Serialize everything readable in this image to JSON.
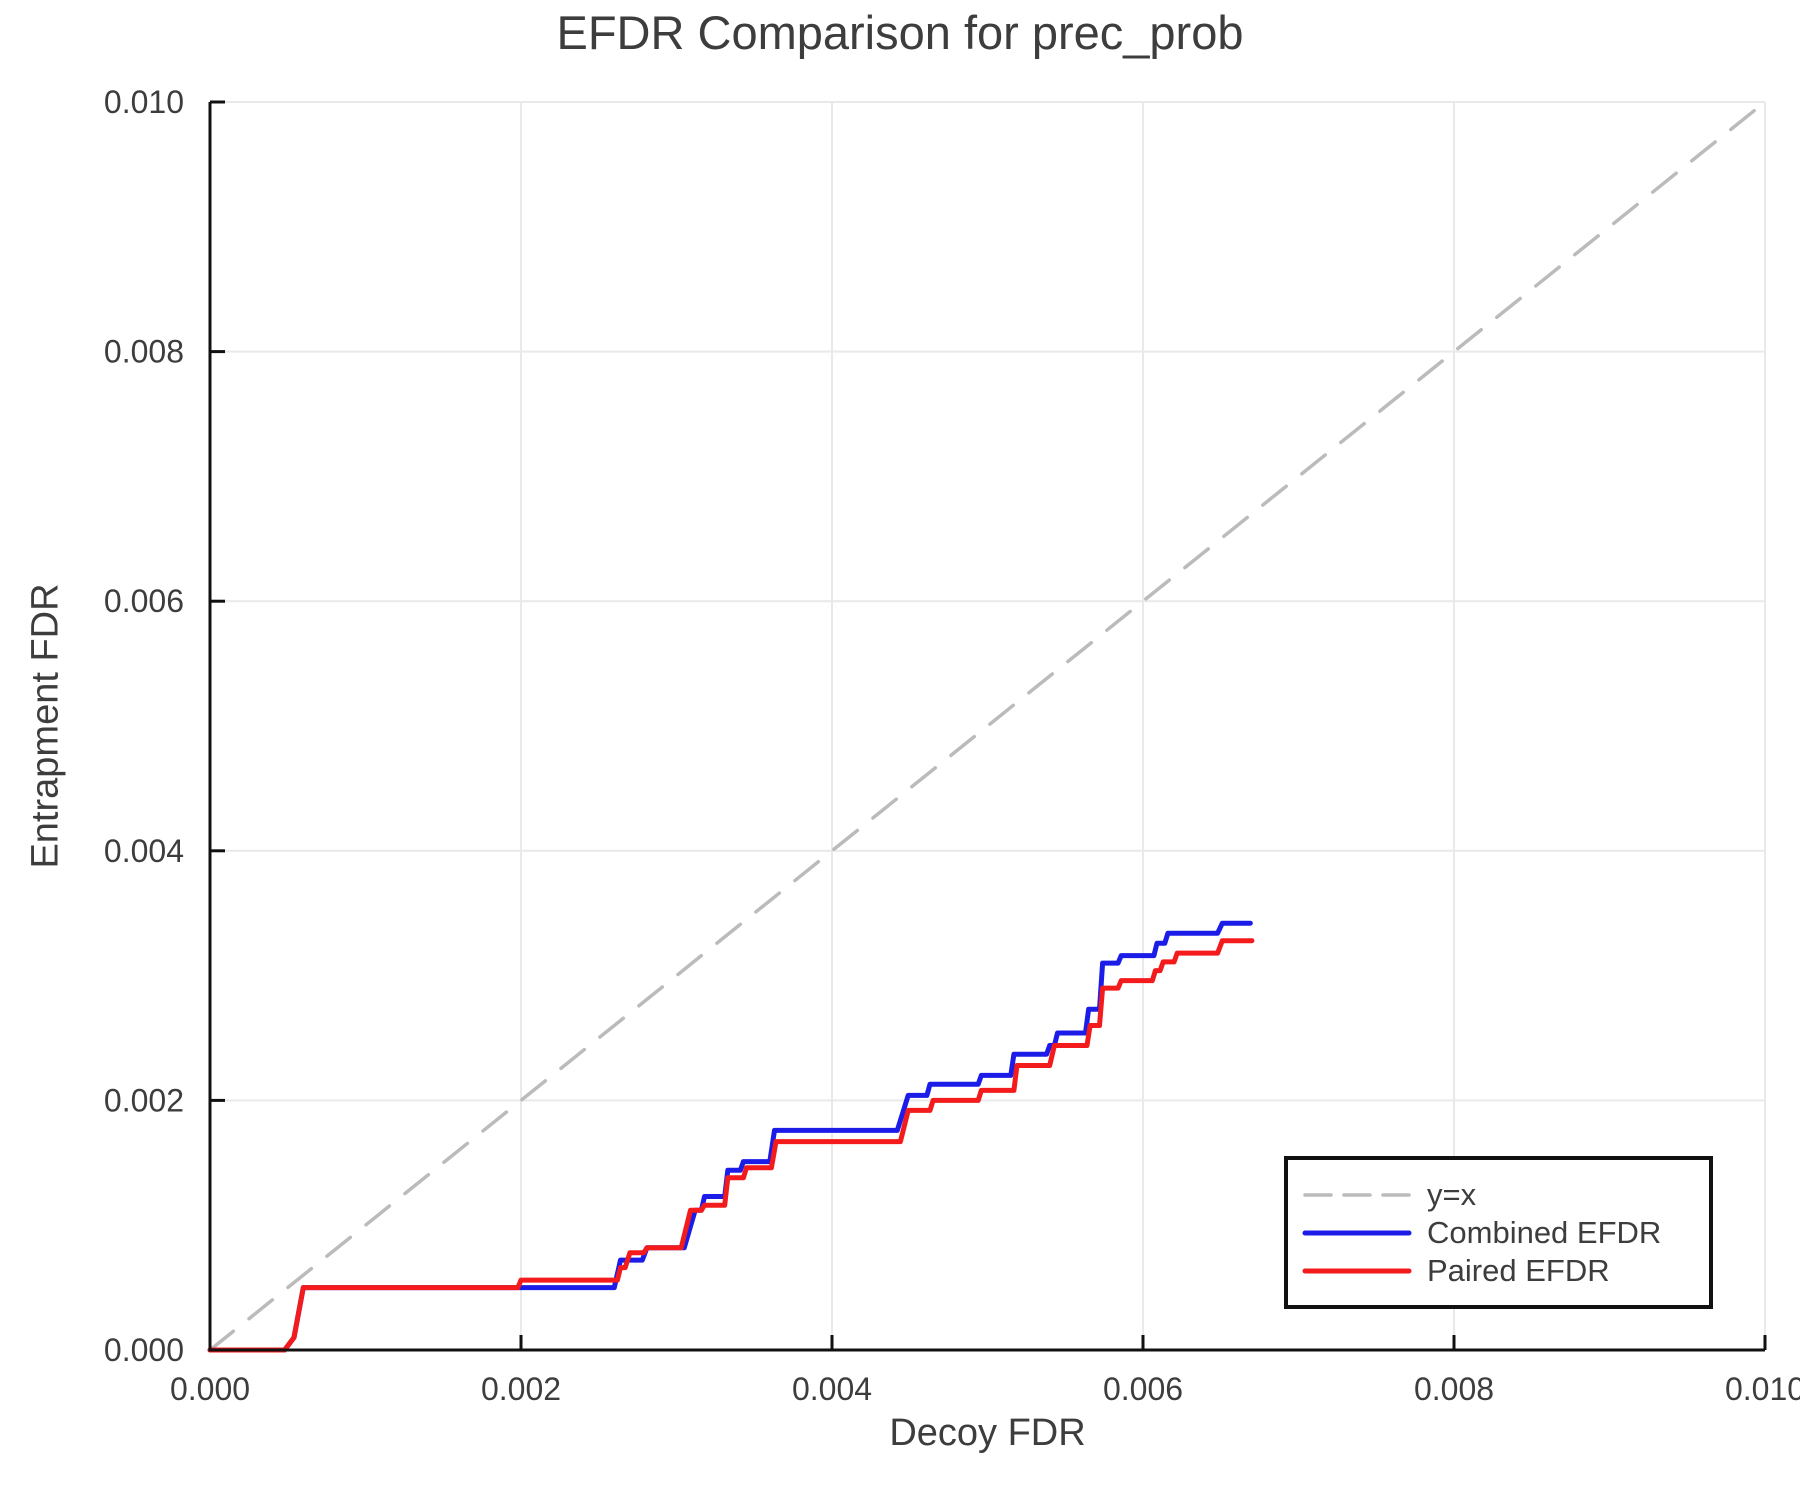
{
  "chart_data": {
    "type": "line",
    "title": "EFDR Comparison for prec_prob",
    "xlabel": "Decoy FDR",
    "ylabel": "Entrapment FDR",
    "xlim": [
      0,
      0.01
    ],
    "ylim": [
      0,
      0.01
    ],
    "grid": true,
    "legend_position": "lower right",
    "xtick_values": [
      0,
      0.002,
      0.004,
      0.006,
      0.008,
      0.01
    ],
    "xtick_labels": [
      "0.000",
      "0.002",
      "0.004",
      "0.006",
      "0.008",
      "0.010"
    ],
    "ytick_values": [
      0,
      0.002,
      0.004,
      0.006,
      0.008,
      0.01
    ],
    "ytick_labels": [
      "0.000",
      "0.002",
      "0.004",
      "0.006",
      "0.008",
      "0.010"
    ],
    "colors": {
      "grid": "#e9e9e9",
      "spine": "#111111",
      "text": "#3d3d3d",
      "reference": "#bbbbbb",
      "combined": "#1c1ce8",
      "paired": "#f31b1b"
    },
    "series": [
      {
        "name": "y=x",
        "color": "#bbbbbb",
        "dash": true,
        "width": 3.5,
        "points": [
          [
            0,
            0
          ],
          [
            0.01,
            0.01
          ]
        ]
      },
      {
        "name": "Combined EFDR",
        "color": "#1c1ce8",
        "dash": false,
        "width": 5,
        "points": [
          [
            0,
            0
          ],
          [
            0.00048,
            0
          ],
          [
            0.00054,
            0.0001
          ],
          [
            0.0006,
            0.0005
          ],
          [
            0.0026,
            0.0005
          ],
          [
            0.00264,
            0.00072
          ],
          [
            0.00278,
            0.00072
          ],
          [
            0.00281,
            0.00082
          ],
          [
            0.00305,
            0.00082
          ],
          [
            0.00312,
            0.00112
          ],
          [
            0.00316,
            0.00112
          ],
          [
            0.00318,
            0.00123
          ],
          [
            0.00331,
            0.00123
          ],
          [
            0.00333,
            0.00144
          ],
          [
            0.00341,
            0.00144
          ],
          [
            0.00343,
            0.00151
          ],
          [
            0.0036,
            0.00151
          ],
          [
            0.00363,
            0.00176
          ],
          [
            0.00442,
            0.00176
          ],
          [
            0.00449,
            0.00204
          ],
          [
            0.00461,
            0.00204
          ],
          [
            0.00463,
            0.00213
          ],
          [
            0.00494,
            0.00213
          ],
          [
            0.00496,
            0.0022
          ],
          [
            0.00515,
            0.0022
          ],
          [
            0.00517,
            0.00237
          ],
          [
            0.00538,
            0.00237
          ],
          [
            0.0054,
            0.00244
          ],
          [
            0.00543,
            0.00244
          ],
          [
            0.00545,
            0.00254
          ],
          [
            0.00563,
            0.00254
          ],
          [
            0.00565,
            0.00273
          ],
          [
            0.00572,
            0.00273
          ],
          [
            0.00574,
            0.0031
          ],
          [
            0.00584,
            0.0031
          ],
          [
            0.00586,
            0.00316
          ],
          [
            0.00607,
            0.00316
          ],
          [
            0.00609,
            0.00326
          ],
          [
            0.00614,
            0.00326
          ],
          [
            0.00616,
            0.00334
          ],
          [
            0.00648,
            0.00334
          ],
          [
            0.00651,
            0.00342
          ],
          [
            0.00669,
            0.00342
          ]
        ]
      },
      {
        "name": "Paired EFDR",
        "color": "#f31b1b",
        "dash": false,
        "width": 5,
        "points": [
          [
            0,
            0
          ],
          [
            0.00048,
            0
          ],
          [
            0.00054,
            0.0001
          ],
          [
            0.0006,
            0.0005
          ],
          [
            0.00198,
            0.0005
          ],
          [
            0.002,
            0.00056
          ],
          [
            0.00262,
            0.00056
          ],
          [
            0.00264,
            0.00066
          ],
          [
            0.00267,
            0.00066
          ],
          [
            0.0027,
            0.00078
          ],
          [
            0.00279,
            0.00078
          ],
          [
            0.00281,
            0.00082
          ],
          [
            0.00303,
            0.00082
          ],
          [
            0.00309,
            0.00112
          ],
          [
            0.00316,
            0.00112
          ],
          [
            0.00318,
            0.00116
          ],
          [
            0.00331,
            0.00116
          ],
          [
            0.00333,
            0.00138
          ],
          [
            0.00343,
            0.00138
          ],
          [
            0.00345,
            0.00146
          ],
          [
            0.00361,
            0.00146
          ],
          [
            0.00364,
            0.00167
          ],
          [
            0.00444,
            0.00167
          ],
          [
            0.00449,
            0.00192
          ],
          [
            0.00463,
            0.00192
          ],
          [
            0.00465,
            0.002
          ],
          [
            0.00494,
            0.002
          ],
          [
            0.00496,
            0.00208
          ],
          [
            0.00517,
            0.00208
          ],
          [
            0.00519,
            0.00228
          ],
          [
            0.0054,
            0.00228
          ],
          [
            0.00543,
            0.00244
          ],
          [
            0.00564,
            0.00244
          ],
          [
            0.00566,
            0.0026
          ],
          [
            0.00572,
            0.0026
          ],
          [
            0.00574,
            0.0029
          ],
          [
            0.00584,
            0.0029
          ],
          [
            0.00586,
            0.00296
          ],
          [
            0.00606,
            0.00296
          ],
          [
            0.00608,
            0.00304
          ],
          [
            0.00611,
            0.00304
          ],
          [
            0.00613,
            0.00311
          ],
          [
            0.0062,
            0.00311
          ],
          [
            0.00622,
            0.00318
          ],
          [
            0.00648,
            0.00318
          ],
          [
            0.00651,
            0.00328
          ],
          [
            0.0067,
            0.00328
          ]
        ]
      }
    ]
  }
}
